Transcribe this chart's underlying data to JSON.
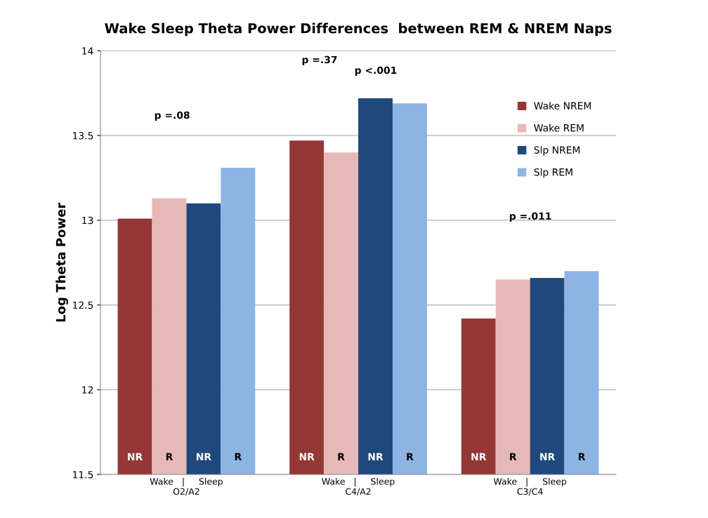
{
  "chart_data": {
    "type": "bar",
    "title": "Wake Sleep Theta Power Differences  between REM & NREM Naps",
    "ylabel": "Log Theta Power",
    "categories": [
      "Wake   |     Sleep\nO2/A2",
      "Wake   |     Sleep\nC4/A2",
      "Wake   |     Sleep\nC3/C4"
    ],
    "series": [
      {
        "name": "Wake NREM",
        "color": "#953735",
        "values": [
          13.01,
          13.47,
          12.42
        ],
        "value_labels": [
          "NR",
          "NR",
          "NR"
        ]
      },
      {
        "name": "Wake REM",
        "color": "#e6b9b8",
        "values": [
          13.13,
          13.4,
          12.65
        ],
        "value_labels": [
          "R",
          "R",
          "R"
        ]
      },
      {
        "name": "Slp NREM",
        "color": "#1f497d",
        "values": [
          13.1,
          13.72,
          12.66
        ],
        "value_labels": [
          "NR",
          "NR",
          "NR"
        ]
      },
      {
        "name": "Slp REM",
        "color": "#8eb4e3",
        "values": [
          13.31,
          13.69,
          12.7
        ],
        "value_labels": [
          "R",
          "R",
          "R"
        ]
      }
    ],
    "ylim": [
      11.5,
      14
    ],
    "yticks": [
      11.5,
      12,
      12.5,
      13,
      13.5,
      14
    ],
    "grid": "y",
    "legend": "top right",
    "annotations": [
      "p =.08",
      "p =.37",
      "p <.001",
      "p =.011"
    ]
  }
}
